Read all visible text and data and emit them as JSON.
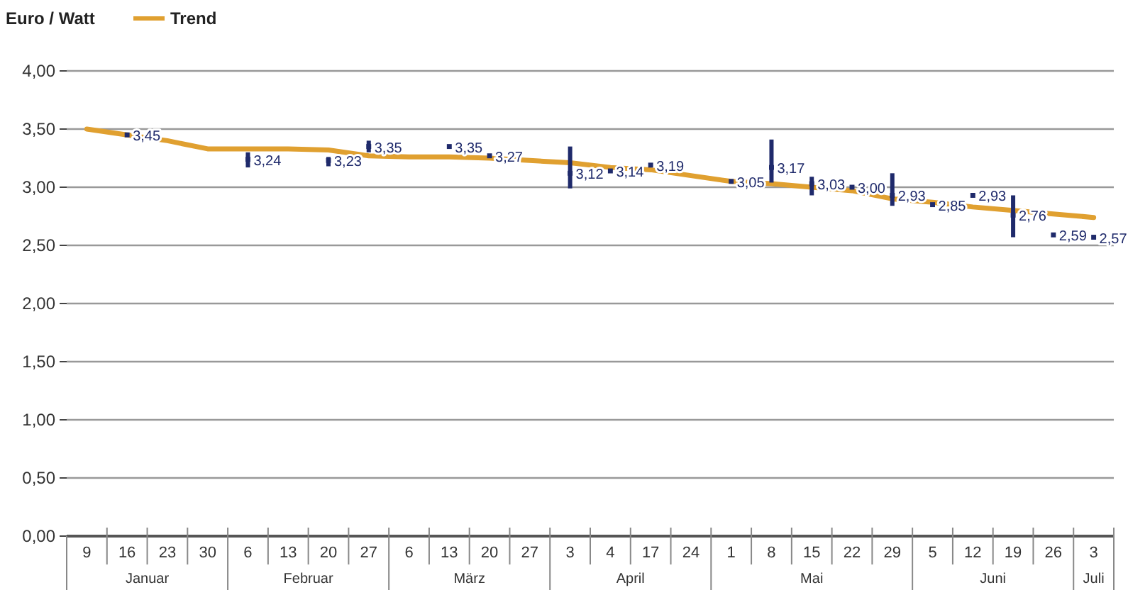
{
  "chart_data": {
    "type": "scatter",
    "ylabel": "Euro / Watt",
    "categories": [
      "9",
      "16",
      "23",
      "30",
      "6",
      "13",
      "20",
      "27",
      "6",
      "13",
      "20",
      "27",
      "3",
      "4",
      "17",
      "24",
      "1",
      "8",
      "15",
      "22",
      "29",
      "5",
      "12",
      "19",
      "26",
      "3"
    ],
    "series": [
      {
        "color": "#1f2a6b",
        "marker": "square",
        "values": [
          null,
          3.45,
          null,
          null,
          3.24,
          null,
          3.23,
          3.35,
          null,
          3.35,
          3.27,
          null,
          3.12,
          3.14,
          3.19,
          null,
          3.05,
          3.17,
          3.03,
          3.0,
          2.93,
          2.85,
          2.93,
          2.76,
          2.59,
          2.57
        ],
        "value_labels": [
          null,
          "3,45",
          null,
          null,
          "3,24",
          null,
          "3,23",
          "3,35",
          null,
          "3,35",
          "3,27",
          null,
          "3,12",
          "3,14",
          "3,19",
          null,
          "3,05",
          "3,17",
          "3,03",
          "3,00",
          "2,93",
          "2,85",
          "2,93",
          "2,76",
          "2,59",
          "2,57"
        ],
        "errors": [
          null,
          null,
          null,
          null,
          [
            3.17,
            3.3
          ],
          null,
          [
            3.18,
            3.26
          ],
          [
            3.3,
            3.4
          ],
          null,
          null,
          null,
          null,
          [
            2.99,
            3.35
          ],
          null,
          null,
          null,
          null,
          [
            3.04,
            3.41
          ],
          [
            2.93,
            3.09
          ],
          null,
          [
            2.84,
            3.12
          ],
          null,
          null,
          [
            2.57,
            2.93
          ],
          null,
          null
        ]
      },
      {
        "type": "line",
        "name": "Trend",
        "color": "#e0a030",
        "values": [
          3.5,
          3.45,
          3.4,
          3.33,
          3.33,
          3.33,
          3.32,
          3.27,
          3.26,
          3.26,
          3.25,
          3.23,
          3.21,
          3.17,
          3.15,
          3.1,
          3.05,
          3.03,
          3.0,
          2.97,
          2.9,
          2.87,
          2.83,
          2.8,
          2.77,
          2.74
        ]
      }
    ],
    "ylim": [
      0,
      4
    ],
    "yticks": [
      {
        "value": 0,
        "label": "0,00"
      },
      {
        "value": 0.5,
        "label": "0,50"
      },
      {
        "value": 1,
        "label": "1,00"
      },
      {
        "value": 1.5,
        "label": "1,50"
      },
      {
        "value": 2,
        "label": "2,00"
      },
      {
        "value": 2.5,
        "label": "2,50"
      },
      {
        "value": 3,
        "label": "3,00"
      },
      {
        "value": 3.5,
        "label": "3,50"
      },
      {
        "value": 4,
        "label": "4,00"
      }
    ],
    "grid": "y",
    "legend": "top left",
    "annotations": [
      "Januar",
      "Februar",
      "März",
      "April",
      "Mai",
      "Juni",
      "Juli"
    ]
  }
}
